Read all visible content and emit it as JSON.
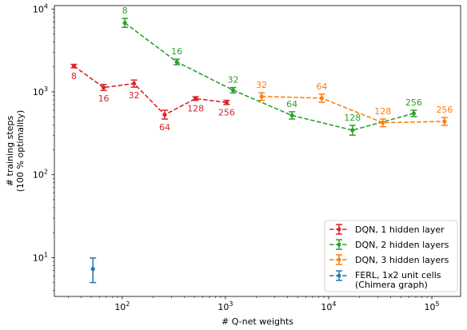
{
  "chart_data": {
    "type": "line",
    "xlabel": "# Q-net weights",
    "ylabel_lines": [
      "# training steps",
      "(100 % optimality)"
    ],
    "xscale": "log",
    "yscale": "log",
    "xlim": [
      22,
      190000
    ],
    "ylim": [
      3.4,
      11000
    ],
    "x_ticks": [
      {
        "value": 100,
        "base": "10",
        "exp": "2"
      },
      {
        "value": 1000,
        "base": "10",
        "exp": "3"
      },
      {
        "value": 10000,
        "base": "10",
        "exp": "4"
      },
      {
        "value": 100000,
        "base": "10",
        "exp": "5"
      }
    ],
    "y_ticks": [
      {
        "value": 10,
        "base": "10",
        "exp": "1"
      },
      {
        "value": 100,
        "base": "10",
        "exp": "2"
      },
      {
        "value": 1000,
        "base": "10",
        "exp": "3"
      },
      {
        "value": 10000,
        "base": "10",
        "exp": "4"
      }
    ],
    "grid": false,
    "legend_position": "lower-right",
    "series": [
      {
        "name": "DQN, 1 hidden layer",
        "color": "#d62728",
        "linestyle": "dashed",
        "points": [
          {
            "x": 34,
            "y": 2050,
            "err_low": 1950,
            "err_high": 2150,
            "label": "8",
            "label_pos": "below"
          },
          {
            "x": 66,
            "y": 1130,
            "err_low": 1040,
            "err_high": 1230,
            "label": "16",
            "label_pos": "below"
          },
          {
            "x": 130,
            "y": 1260,
            "err_low": 1140,
            "err_high": 1390,
            "label": "32",
            "label_pos": "below"
          },
          {
            "x": 258,
            "y": 530,
            "err_low": 470,
            "err_high": 600,
            "label": "64",
            "label_pos": "below"
          },
          {
            "x": 514,
            "y": 830,
            "err_low": 790,
            "err_high": 875,
            "label": "128",
            "label_pos": "below"
          },
          {
            "x": 1026,
            "y": 745,
            "err_low": 705,
            "err_high": 790,
            "label": "256",
            "label_pos": "below"
          }
        ]
      },
      {
        "name": "DQN, 2 hidden layers",
        "color": "#2ca02c",
        "linestyle": "dashed",
        "points": [
          {
            "x": 106,
            "y": 6800,
            "err_low": 6000,
            "err_high": 7700,
            "label": "8",
            "label_pos": "above"
          },
          {
            "x": 338,
            "y": 2300,
            "err_low": 2130,
            "err_high": 2480,
            "label": "16",
            "label_pos": "above"
          },
          {
            "x": 1186,
            "y": 1050,
            "err_low": 970,
            "err_high": 1130,
            "label": "32",
            "label_pos": "above"
          },
          {
            "x": 4418,
            "y": 520,
            "err_low": 470,
            "err_high": 575,
            "label": "64",
            "label_pos": "above"
          },
          {
            "x": 17026,
            "y": 345,
            "err_low": 300,
            "err_high": 395,
            "label": "128",
            "label_pos": "above"
          },
          {
            "x": 66818,
            "y": 550,
            "err_low": 505,
            "err_high": 600,
            "label": "256",
            "label_pos": "above"
          }
        ]
      },
      {
        "name": "DQN, 3 hidden layers",
        "color": "#ff7f0e",
        "linestyle": "dashed",
        "points": [
          {
            "x": 2242,
            "y": 880,
            "err_low": 790,
            "err_high": 975,
            "label": "32",
            "label_pos": "above"
          },
          {
            "x": 8578,
            "y": 840,
            "err_low": 750,
            "err_high": 940,
            "label": "64",
            "label_pos": "above"
          },
          {
            "x": 33538,
            "y": 425,
            "err_low": 380,
            "err_high": 470,
            "label": "128",
            "label_pos": "above"
          },
          {
            "x": 132610,
            "y": 440,
            "err_low": 395,
            "err_high": 490,
            "label": "256",
            "label_pos": "above"
          }
        ]
      },
      {
        "name_lines": [
          "FERL, 1x2 unit cells",
          "(Chimera graph)"
        ],
        "color": "#1f77b4",
        "linestyle": "dashed",
        "points": [
          {
            "x": 52,
            "y": 7.3,
            "err_low": 5.0,
            "err_high": 9.9,
            "label": "",
            "label_pos": "none"
          }
        ]
      }
    ]
  }
}
